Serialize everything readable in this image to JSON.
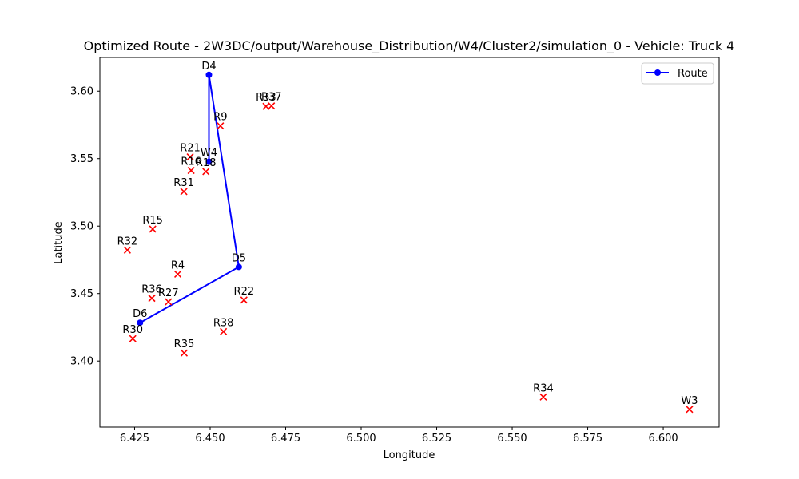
{
  "chart_data": {
    "type": "scatter",
    "title": "Optimized Route - 2W3DC/output/Warehouse_Distribution/W4/Cluster2/simulation_0 - Vehicle: Truck 4",
    "xlabel": "Longitude",
    "ylabel": "Latitude",
    "xlim": [
      6.4135,
      6.6185
    ],
    "ylim": [
      3.351,
      3.625
    ],
    "xticks": [
      {
        "value": 6.425,
        "label": "6.425"
      },
      {
        "value": 6.45,
        "label": "6.450"
      },
      {
        "value": 6.475,
        "label": "6.475"
      },
      {
        "value": 6.5,
        "label": "6.500"
      },
      {
        "value": 6.525,
        "label": "6.525"
      },
      {
        "value": 6.55,
        "label": "6.550"
      },
      {
        "value": 6.575,
        "label": "6.575"
      },
      {
        "value": 6.6,
        "label": "6.600"
      }
    ],
    "yticks": [
      {
        "value": 3.4,
        "label": "3.40"
      },
      {
        "value": 3.45,
        "label": "3.45"
      },
      {
        "value": 3.5,
        "label": "3.50"
      },
      {
        "value": 3.55,
        "label": "3.55"
      },
      {
        "value": 3.6,
        "label": "3.60"
      }
    ],
    "grid": false,
    "legend": {
      "position": "top-right",
      "entries": [
        {
          "label": "Route",
          "color": "#0000ff",
          "marker": "circle"
        }
      ]
    },
    "colors": {
      "route": "#0000ff",
      "stop": "#ff0000"
    },
    "route": {
      "name": "Route",
      "points": [
        {
          "x": 6.4496,
          "y": 3.5477,
          "label": "W4"
        },
        {
          "x": 6.4496,
          "y": 3.6121,
          "label": "D4"
        },
        {
          "x": 6.4595,
          "y": 3.4697,
          "label": "D5"
        },
        {
          "x": 6.4268,
          "y": 3.4284,
          "label": "D6"
        }
      ],
      "extra_labels": [
        {
          "x": 6.4496,
          "y": 3.6121,
          "label": "D4"
        },
        {
          "x": 6.4595,
          "y": 3.4697,
          "label": "D5"
        },
        {
          "x": 6.4268,
          "y": 3.4284,
          "label": "D6"
        }
      ]
    },
    "stops": [
      {
        "x": 6.4685,
        "y": 3.5888,
        "label": "R33"
      },
      {
        "x": 6.4703,
        "y": 3.5891,
        "label": "R37"
      },
      {
        "x": 6.4534,
        "y": 3.5743,
        "label": "R9"
      },
      {
        "x": 6.4434,
        "y": 3.5513,
        "label": "R21"
      },
      {
        "x": 6.4437,
        "y": 3.5412,
        "label": "R16"
      },
      {
        "x": 6.4486,
        "y": 3.5404,
        "label": "R18"
      },
      {
        "x": 6.4413,
        "y": 3.5256,
        "label": "R31"
      },
      {
        "x": 6.431,
        "y": 3.4978,
        "label": "R15"
      },
      {
        "x": 6.4226,
        "y": 3.4822,
        "label": "R32"
      },
      {
        "x": 6.4393,
        "y": 3.4644,
        "label": "R4"
      },
      {
        "x": 6.4307,
        "y": 3.4465,
        "label": "R36"
      },
      {
        "x": 6.4362,
        "y": 3.4439,
        "label": "R27"
      },
      {
        "x": 6.4612,
        "y": 3.4452,
        "label": "R22"
      },
      {
        "x": 6.4544,
        "y": 3.4218,
        "label": "R38"
      },
      {
        "x": 6.4244,
        "y": 3.4166,
        "label": "R30"
      },
      {
        "x": 6.4414,
        "y": 3.4059,
        "label": "R35"
      },
      {
        "x": 6.5603,
        "y": 3.3733,
        "label": "R34"
      },
      {
        "x": 6.6087,
        "y": 3.3641,
        "label": "W3"
      }
    ]
  }
}
